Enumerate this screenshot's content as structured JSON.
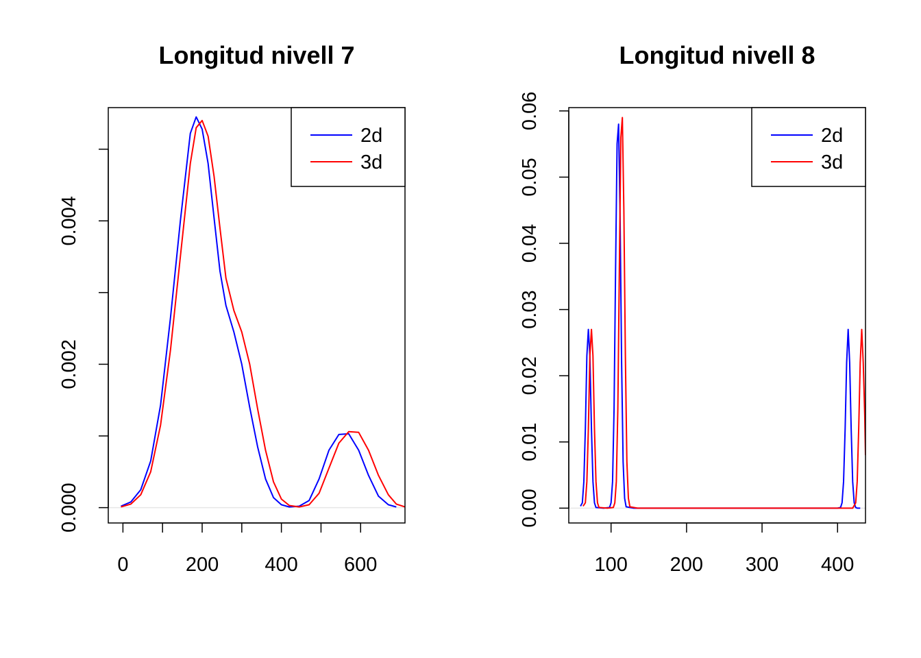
{
  "chart_data": [
    {
      "type": "line",
      "title": "Longitud nivell 7",
      "xlabel": "",
      "ylabel": "",
      "xlim": [
        -37,
        712
      ],
      "ylim": [
        -0.000214,
        0.00558
      ],
      "x_ticks": [
        0,
        100,
        200,
        300,
        400,
        500,
        600
      ],
      "x_tick_labels": [
        "0",
        "",
        "200",
        "",
        "400",
        "",
        "600"
      ],
      "y_ticks": [
        0.0,
        0.001,
        0.002,
        0.003,
        0.004,
        0.005
      ],
      "y_tick_labels": [
        "0.000",
        "",
        "0.002",
        "",
        "0.004",
        ""
      ],
      "zero_line": true,
      "legend": {
        "position": "top-right",
        "entries": [
          "2d",
          "3d"
        ]
      },
      "series": [
        {
          "name": "2d",
          "color": "#0000ff",
          "x": [
            -5,
            20,
            45,
            70,
            95,
            120,
            145,
            170,
            185,
            200,
            215,
            230,
            245,
            260,
            280,
            300,
            320,
            340,
            360,
            380,
            400,
            420,
            445,
            470,
            495,
            520,
            545,
            570,
            595,
            620,
            645,
            670,
            690
          ],
          "y": [
            2e-05,
            8e-05,
            0.00025,
            0.00065,
            0.00143,
            0.00265,
            0.004,
            0.00522,
            0.00545,
            0.00528,
            0.0048,
            0.00404,
            0.0033,
            0.00282,
            0.00245,
            0.002,
            0.0014,
            0.00085,
            0.0004,
            0.00014,
            4e-05,
            1e-05,
            2e-05,
            0.0001,
            0.0004,
            0.0008,
            0.00102,
            0.00103,
            0.0008,
            0.00045,
            0.00016,
            4e-05,
            1e-05
          ]
        },
        {
          "name": "3d",
          "color": "#ff0000",
          "x": [
            -5,
            20,
            45,
            70,
            95,
            120,
            145,
            170,
            185,
            200,
            215,
            230,
            245,
            260,
            280,
            300,
            320,
            340,
            360,
            380,
            400,
            420,
            445,
            470,
            495,
            520,
            545,
            570,
            595,
            620,
            645,
            670,
            690,
            712
          ],
          "y": [
            1e-05,
            5e-05,
            0.00018,
            0.0005,
            0.00115,
            0.0022,
            0.0035,
            0.0048,
            0.0053,
            0.0054,
            0.00518,
            0.00462,
            0.0039,
            0.0032,
            0.00275,
            0.00245,
            0.002,
            0.00138,
            0.0008,
            0.00036,
            0.00012,
            3e-05,
            1e-05,
            4e-05,
            0.0002,
            0.00055,
            0.0009,
            0.00106,
            0.00105,
            0.0008,
            0.00045,
            0.00018,
            5e-05,
            1e-05
          ]
        }
      ]
    },
    {
      "type": "line",
      "title": "Longitud nivell 8",
      "xlabel": "",
      "ylabel": "",
      "xlim": [
        44,
        437
      ],
      "ylim": [
        -0.00224,
        0.0605
      ],
      "x_ticks": [
        100,
        200,
        300,
        400
      ],
      "x_tick_labels": [
        "100",
        "200",
        "300",
        "400"
      ],
      "y_ticks": [
        0.0,
        0.01,
        0.02,
        0.03,
        0.04,
        0.05,
        0.06
      ],
      "y_tick_labels": [
        "0.00",
        "0.01",
        "0.02",
        "0.03",
        "0.04",
        "0.05",
        "0.06"
      ],
      "zero_line": true,
      "legend": {
        "position": "top-right",
        "entries": [
          "2d",
          "3d"
        ]
      },
      "series": [
        {
          "name": "2d",
          "color": "#0000ff",
          "x": [
            59.5,
            62,
            64,
            66,
            68,
            70,
            72,
            74,
            76,
            78,
            80,
            90,
            98,
            100,
            102,
            104,
            106,
            108,
            110,
            112,
            114,
            116,
            118,
            120,
            130,
            200,
            300,
            400,
            404,
            406,
            408,
            410,
            412,
            414,
            416,
            418,
            420,
            422,
            424,
            426,
            430
          ],
          "y": [
            0.0003,
            0.0008,
            0.004,
            0.012,
            0.023,
            0.027,
            0.023,
            0.012,
            0.004,
            0.0008,
            0.0001,
            0.0,
            0.0001,
            0.0008,
            0.004,
            0.015,
            0.036,
            0.055,
            0.058,
            0.044,
            0.022,
            0.007,
            0.0015,
            0.0002,
            0.0,
            0.0,
            0.0,
            0.0,
            0.0001,
            0.0008,
            0.004,
            0.012,
            0.022,
            0.027,
            0.022,
            0.012,
            0.004,
            0.0008,
            0.0001,
            0.0,
            0.0
          ]
        },
        {
          "name": "3d",
          "color": "#ff0000",
          "x": [
            63,
            66,
            68,
            70,
            72,
            74,
            76,
            78,
            80,
            82,
            84,
            95,
            103,
            105,
            107,
            109,
            111,
            113,
            115,
            117,
            119,
            121,
            123,
            125,
            135,
            200,
            300,
            400,
            420,
            424,
            426,
            428,
            430,
            432,
            434,
            436,
            437
          ],
          "y": [
            0.0003,
            0.0008,
            0.004,
            0.012,
            0.023,
            0.027,
            0.023,
            0.012,
            0.004,
            0.0008,
            0.0001,
            0.0,
            0.0001,
            0.0008,
            0.004,
            0.015,
            0.036,
            0.056,
            0.059,
            0.045,
            0.023,
            0.007,
            0.0015,
            0.0002,
            0.0,
            0.0,
            0.0,
            0.0,
            0.0,
            0.0008,
            0.004,
            0.012,
            0.022,
            0.027,
            0.022,
            0.014,
            0.008
          ]
        }
      ]
    }
  ]
}
